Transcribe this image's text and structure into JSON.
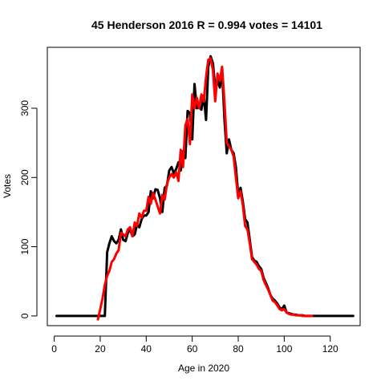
{
  "chart_data": {
    "type": "line",
    "title": "45 Henderson 2016 R = 0.994 votes = 14101",
    "xlabel": "Age in 2020",
    "ylabel": "Votes",
    "xlim": [
      -3,
      133
    ],
    "ylim": [
      -14,
      388
    ],
    "xticks": [
      0,
      20,
      40,
      60,
      80,
      100,
      120
    ],
    "yticks": [
      0,
      100,
      200,
      300
    ],
    "grid": false,
    "series": [
      {
        "color": "#000000",
        "x": [
          1,
          2,
          3,
          4,
          5,
          6,
          7,
          8,
          9,
          10,
          11,
          12,
          13,
          14,
          15,
          16,
          17,
          18,
          19,
          20,
          21,
          22,
          23,
          24,
          25,
          26,
          27,
          28,
          29,
          30,
          31,
          32,
          33,
          34,
          35,
          36,
          37,
          38,
          39,
          40,
          41,
          42,
          43,
          44,
          45,
          46,
          47,
          48,
          49,
          50,
          51,
          52,
          53,
          54,
          55,
          56,
          57,
          58,
          59,
          60,
          61,
          62,
          63,
          64,
          65,
          66,
          67,
          68,
          69,
          70,
          71,
          72,
          73,
          74,
          75,
          76,
          77,
          78,
          79,
          80,
          81,
          82,
          83,
          84,
          85,
          86,
          87,
          88,
          89,
          90,
          91,
          92,
          93,
          94,
          95,
          96,
          97,
          98,
          99,
          100,
          101,
          102,
          103,
          104,
          105,
          106,
          107,
          108,
          109,
          110,
          111,
          112,
          113,
          114,
          115,
          116,
          117,
          118,
          119,
          120,
          121,
          122,
          123,
          124,
          125,
          126,
          127,
          128,
          129,
          130
        ],
        "y": [
          0,
          0,
          0,
          0,
          0,
          0,
          0,
          0,
          0,
          0,
          0,
          0,
          0,
          0,
          0,
          0,
          0,
          0,
          0,
          0,
          0,
          0,
          92,
          105,
          115,
          108,
          105,
          110,
          125,
          110,
          108,
          120,
          125,
          115,
          118,
          132,
          128,
          140,
          145,
          145,
          150,
          180,
          170,
          183,
          182,
          170,
          150,
          185,
          188,
          210,
          215,
          206,
          212,
          222,
          210,
          238,
          228,
          296,
          293,
          255,
          335,
          300,
          303,
          298,
          318,
          283,
          360,
          375,
          365,
          330,
          340,
          330,
          355,
          285,
          235,
          255,
          240,
          235,
          215,
          175,
          185,
          165,
          140,
          135,
          110,
          85,
          80,
          78,
          72,
          68,
          55,
          48,
          40,
          30,
          25,
          22,
          18,
          12,
          10,
          15,
          5,
          4,
          3,
          2,
          2,
          1,
          1,
          1,
          0,
          0,
          0,
          0,
          0,
          0,
          0,
          0,
          0,
          0,
          0,
          0,
          0,
          0,
          0,
          0,
          0,
          0,
          0,
          0,
          0,
          0
        ]
      },
      {
        "color": "#ff0000",
        "x": [
          19,
          20,
          21,
          22,
          23,
          24,
          25,
          26,
          27,
          28,
          29,
          30,
          31,
          32,
          33,
          34,
          35,
          36,
          37,
          38,
          39,
          40,
          41,
          42,
          43,
          44,
          45,
          46,
          47,
          48,
          49,
          50,
          51,
          52,
          53,
          54,
          55,
          56,
          57,
          58,
          59,
          60,
          61,
          62,
          63,
          64,
          65,
          66,
          67,
          68,
          69,
          70,
          71,
          72,
          73,
          74,
          75,
          76,
          77,
          78,
          79,
          80,
          81,
          82,
          83,
          84,
          85,
          86,
          87,
          88,
          89,
          90,
          91,
          92,
          93,
          94,
          95,
          96,
          97,
          98,
          99,
          100,
          101,
          102,
          103,
          104,
          105,
          106,
          107,
          108,
          109,
          110,
          111,
          112
        ],
        "y": [
          -5,
          10,
          25,
          45,
          58,
          65,
          78,
          82,
          90,
          95,
          120,
          118,
          115,
          125,
          128,
          115,
          135,
          130,
          148,
          142,
          152,
          152,
          172,
          162,
          178,
          168,
          158,
          148,
          175,
          168,
          190,
          200,
          205,
          200,
          208,
          195,
          240,
          215,
          275,
          285,
          248,
          320,
          300,
          315,
          300,
          320,
          310,
          345,
          370,
          372,
          355,
          310,
          350,
          340,
          360,
          310,
          250,
          245,
          240,
          230,
          200,
          170,
          180,
          160,
          130,
          125,
          105,
          82,
          78,
          74,
          68,
          65,
          52,
          45,
          38,
          30,
          22,
          20,
          15,
          10,
          8,
          10,
          5,
          3,
          2,
          2,
          1,
          1,
          1,
          0,
          0,
          0,
          0,
          0
        ]
      }
    ]
  }
}
